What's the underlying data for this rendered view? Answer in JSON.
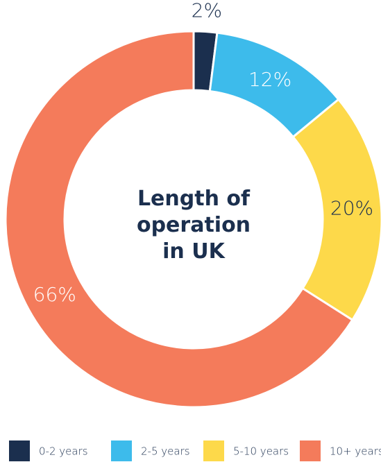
{
  "chart_data": {
    "type": "donut",
    "title": "Length of operation in UK",
    "categories": [
      "0-2 years",
      "2-5 years",
      "5-10 years",
      "10+ years"
    ],
    "values": [
      2,
      12,
      20,
      66
    ],
    "value_labels": [
      "2%",
      "12%",
      "20%",
      "66%"
    ],
    "colors": [
      "#1b2f4e",
      "#3dbbeb",
      "#fdd94a",
      "#f47b5b"
    ],
    "label_colors": [
      "#1b2f4e",
      "#ffffff",
      "#1b2f4e",
      "#ffffff"
    ],
    "legend": "bottom"
  }
}
